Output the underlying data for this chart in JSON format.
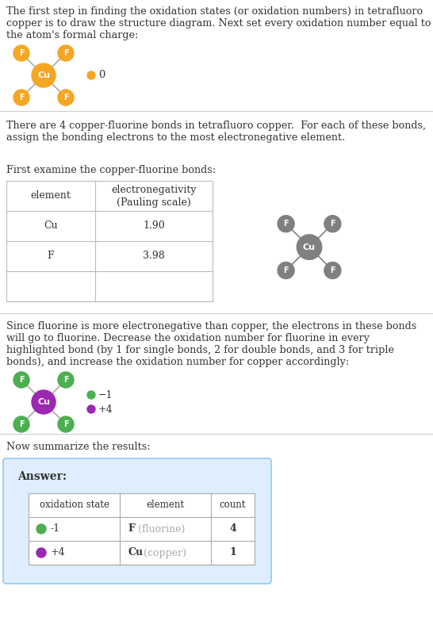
{
  "title_text": "The first step in finding the oxidation states (or oxidation numbers) in tetrafluoro\ncopper is to draw the structure diagram. Next set every oxidation number equal to\nthe atom's formal charge:",
  "section2_text": "There are 4 copper-fluorine bonds in tetrafluoro copper.  For each of these bonds,\nassign the bonding electrons to the most electronegative element.",
  "section2b_text": "First examine the copper-fluorine bonds:",
  "section3_text": "Since fluorine is more electronegative than copper, the electrons in these bonds\nwill go to fluorine. Decrease the oxidation number for fluorine in every\nhighlighted bond (by 1 for single bonds, 2 for double bonds, and 3 for triple\nbonds), and increase the oxidation number for copper accordingly:",
  "section4_text": "Now summarize the results:",
  "answer_label": "Answer:",
  "answer_row_data": [
    [
      "-1",
      "F",
      "(fluorine)",
      "4",
      "#4caf50"
    ],
    [
      "+4",
      "Cu",
      "(copper)",
      "1",
      "#9c27b0"
    ]
  ],
  "cu_color_orange": "#f5a623",
  "f_color_orange": "#f5a623",
  "cu_color_gray": "#808080",
  "f_color_gray": "#808080",
  "cu_color_purple": "#9c27b0",
  "f_color_green": "#4caf50",
  "bond_color_orange": "#aaaaaa",
  "bond_color_gray": "#808080",
  "bond_color_green": "#aaaaaa",
  "legend_orange": "#f5a623",
  "legend_green": "#4caf50",
  "legend_purple": "#9c27b0",
  "bg_answer": "#deeeff",
  "border_answer": "#90c8f0",
  "text_color": "#333333",
  "separator_color": "#cccccc",
  "fig_width": 5.46,
  "fig_height": 8.02
}
